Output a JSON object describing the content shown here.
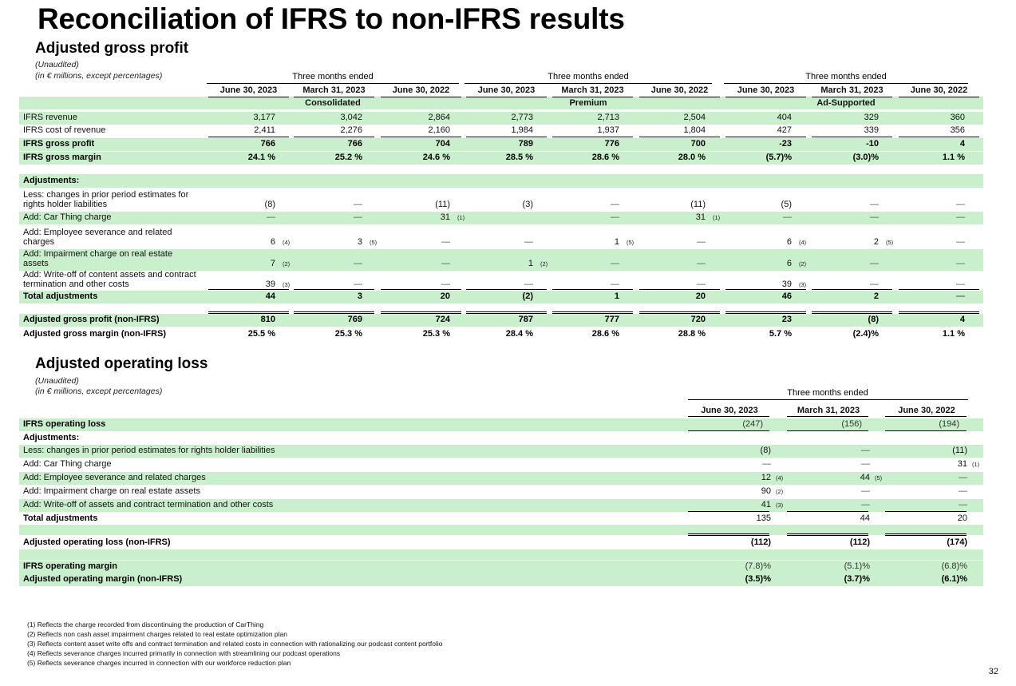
{
  "title": "Reconciliation of IFRS to non-IFRS results",
  "gp": {
    "heading": "Adjusted gross profit",
    "unaudited": "(Unaudited)",
    "units": "(in € millions, except percentages)",
    "period_header": "Three months ended",
    "dates": [
      "June 30, 2023",
      "March 31, 2023",
      "June 30, 2022"
    ],
    "segments": [
      "Consolidated",
      "Premium",
      "Ad-Supported"
    ],
    "rows": [
      {
        "label": "IFRS revenue",
        "bold": false,
        "values": [
          "3,177",
          "3,042",
          "2,864",
          "2,773",
          "2,713",
          "2,504",
          "404",
          "329",
          "360"
        ]
      },
      {
        "label": "IFRS cost of revenue",
        "bold": false,
        "values": [
          "2,411",
          "2,276",
          "2,160",
          "1,984",
          "1,937",
          "1,804",
          "427",
          "339",
          "356"
        ]
      },
      {
        "label": "IFRS gross profit",
        "bold": true,
        "values": [
          "766",
          "766",
          "704",
          "789",
          "776",
          "700",
          "-23",
          "-10",
          "4"
        ]
      },
      {
        "label": "IFRS gross margin",
        "bold": true,
        "values": [
          "24.1 %",
          "25.2 %",
          "24.6 %",
          "28.5 %",
          "28.6 %",
          "28.0 %",
          "(5.7)%",
          "(3.0)%",
          "1.1 %"
        ]
      },
      {
        "label": "Adjustments:",
        "bold": true,
        "values": [
          "",
          "",
          "",
          "",
          "",
          "",
          "",
          "",
          ""
        ]
      },
      {
        "label": "Less: changes in prior period estimates for\nrights holder liabilities",
        "bold": false,
        "values": [
          "(8)",
          "—",
          "(11)",
          "(3)",
          "—",
          "(11)",
          "(5)",
          "—",
          "—"
        ]
      },
      {
        "label": "Add: Car Thing charge",
        "bold": false,
        "values": [
          "—",
          "—",
          "31",
          "",
          "—",
          "31",
          "—",
          "—",
          "—"
        ]
      },
      {
        "label": "Add: Employee severance and related\ncharges",
        "bold": false,
        "values": [
          "6",
          "3",
          "—",
          "—",
          "1",
          "—",
          "6",
          "2",
          "—"
        ]
      },
      {
        "label": "Add: Impairment charge on real estate\nassets",
        "bold": false,
        "values": [
          "7",
          "—",
          "—",
          "1",
          "—",
          "—",
          "6",
          "—",
          "—"
        ]
      },
      {
        "label": "Add: Write-off of content assets and contract\ntermination and other costs",
        "bold": false,
        "values": [
          "39",
          "—",
          "—",
          "—",
          "—",
          "—",
          "39",
          "—",
          "—"
        ]
      },
      {
        "label": "Total adjustments",
        "bold": true,
        "values": [
          "44",
          "3",
          "20",
          "(2)",
          "1",
          "20",
          "46",
          "2",
          "—"
        ]
      },
      {
        "label": "Adjusted gross profit (non-IFRS)",
        "bold": true,
        "values": [
          "810",
          "769",
          "724",
          "787",
          "777",
          "720",
          "23",
          "(8)",
          "4"
        ]
      },
      {
        "label": "Adjusted gross margin (non-IFRS)",
        "bold": true,
        "values": [
          "25.5 %",
          "25.3 %",
          "25.3 %",
          "28.4 %",
          "28.6 %",
          "28.8 %",
          "5.7 %",
          "(2.4)%",
          "1.1 %"
        ]
      }
    ],
    "footnote_marks": {
      "r6c2": "(1)",
      "r6c5": "(1)",
      "r7c0": "(4)",
      "r7c1": "(5)",
      "r7c4": "(5)",
      "r7c6": "(4)",
      "r7c7": "(5)",
      "r8c0": "(2)",
      "r8c3": "(2)",
      "r8c6": "(2)",
      "r9c0": "(3)",
      "r9c6": "(3)"
    }
  },
  "ol": {
    "heading": "Adjusted operating loss",
    "unaudited": "(Unaudited)",
    "units": "(in € millions, except percentages)",
    "period_header": "Three months ended",
    "dates": [
      "June 30, 2023",
      "March 31, 2023",
      "June 30, 2022"
    ],
    "rows": [
      {
        "label": "IFRS operating loss",
        "bold": true,
        "values": [
          "(247)",
          "(156)",
          "(194)"
        ]
      },
      {
        "label": "Adjustments:",
        "bold": true,
        "values": [
          "",
          "",
          ""
        ]
      },
      {
        "label": "Less: changes in prior period estimates for rights holder liabilities",
        "bold": false,
        "values": [
          "(8)",
          "—",
          "(11)"
        ]
      },
      {
        "label": "Add: Car Thing charge",
        "bold": false,
        "values": [
          "—",
          "—",
          "31"
        ]
      },
      {
        "label": "Add: Employee severance and related charges",
        "bold": false,
        "values": [
          "12",
          "44",
          "—"
        ]
      },
      {
        "label": "Add: Impairment charge on real estate assets",
        "bold": false,
        "values": [
          "90",
          "—",
          "—"
        ]
      },
      {
        "label": "Add: Write-off of assets and contract termination and other costs",
        "bold": false,
        "values": [
          "41",
          "—",
          "—"
        ]
      },
      {
        "label": "Total adjustments",
        "bold": true,
        "values": [
          "135",
          "44",
          "20"
        ]
      },
      {
        "label": "Adjusted operating loss (non-IFRS)",
        "bold": true,
        "values": [
          "(112)",
          "(112)",
          "(174)"
        ]
      },
      {
        "label": "IFRS operating margin",
        "bold": true,
        "values": [
          "(7.8)%",
          "(5.1)%",
          "(6.8)%"
        ]
      },
      {
        "label": "Adjusted operating margin (non-IFRS)",
        "bold": true,
        "values": [
          "(3.5)%",
          "(3.7)%",
          "(6.1)%"
        ]
      }
    ],
    "footnote_marks": {
      "r3c2": "(1)",
      "r4c0": "(4)",
      "r4c1": "(5)",
      "r5c0": "(2)",
      "r6c0": "(3)"
    }
  },
  "footnotes": [
    "(1) Reflects the charge recorded from discontinuing the production of CarThing",
    "(2) Reflects non cash asset impairment charges related to real estate optimization plan",
    "(3) Reflects content asset write offs and contract termination and related costs in connection with rationalizing our podcast content portfolio",
    "(4) Reflects severance charges incurred primarily in connection with streamlining our podcast operations",
    "(5) Reflects severance charges incurred in connection with our workforce reduction plan"
  ],
  "page_number": "32",
  "colors": {
    "row_highlight": "#c9efcd"
  }
}
